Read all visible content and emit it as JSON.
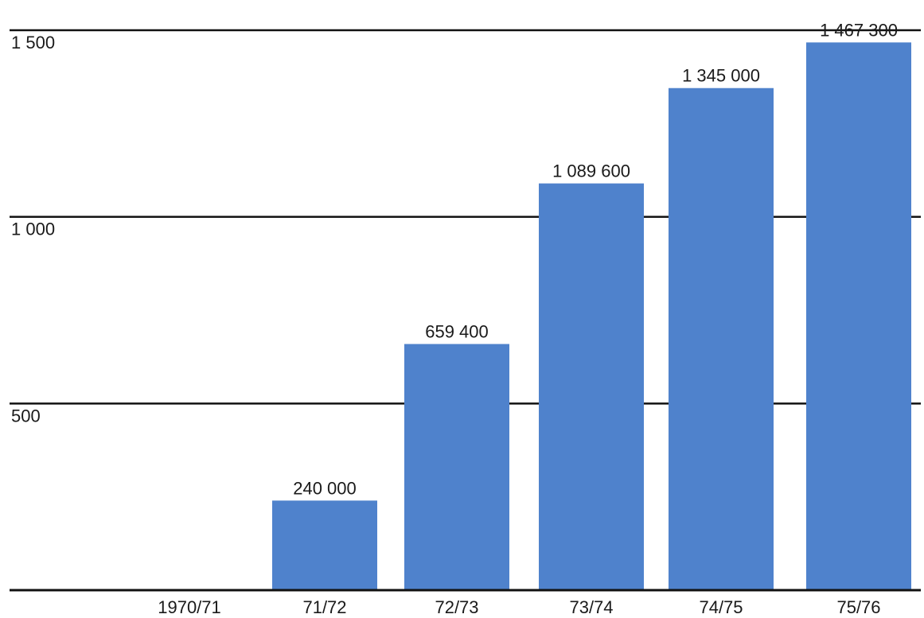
{
  "chart_data": {
    "type": "bar",
    "title": "",
    "xlabel": "",
    "ylabel": "",
    "ylim": [
      0,
      1500
    ],
    "yticks": [
      500,
      1000,
      1500
    ],
    "ytick_labels": [
      "500",
      "1 000",
      "1 500"
    ],
    "grid": true,
    "categories": [
      "1970/71",
      "71/72",
      "72/73",
      "73/74",
      "74/75",
      "75/76"
    ],
    "values": [
      0,
      240000,
      659400,
      1089600,
      1345000,
      1467300
    ],
    "value_unit_scale": 1000,
    "data_labels": [
      "",
      "240 000",
      "659 400",
      "1 089 600",
      "1 345 000",
      "1 467 300"
    ],
    "bar_color": "#4f82cc",
    "axis_color": "#111111",
    "text_color": "#1a1a1a"
  }
}
